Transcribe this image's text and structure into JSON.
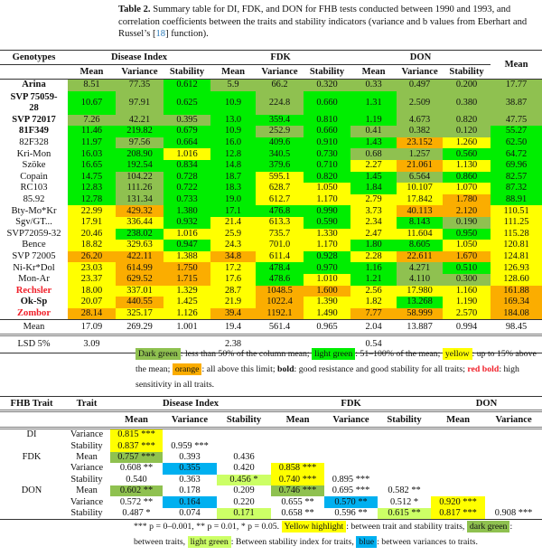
{
  "caption": {
    "label": "Table 2.",
    "text_before_ref": "Summary table for DI, FDK, and DON for FHB tests conducted between 1990 and 1993, and correlation coefficients between the traits and stability indicators (variance and b values from Eberhart and Russel’s [",
    "ref": "18",
    "text_after_ref": "] function)."
  },
  "colors": {
    "D": "#8fc150",
    "G": "#00ee00",
    "Y": "#ffff00",
    "O": "#fbad00",
    "B": "#00b0f0",
    "L": "#ccff66"
  },
  "table1": {
    "genotypes_header": "Genotypes",
    "groups": [
      "Disease Index",
      "FDK",
      "DON"
    ],
    "mean_header": "Mean",
    "subheaders": [
      "Mean",
      "Variance",
      "Stability",
      "Mean",
      "Variance",
      "Stability",
      "Mean",
      "Variance",
      "Stability"
    ],
    "rows": [
      {
        "name": "Arina",
        "style": "bold",
        "values": [
          "8.51",
          "77.35",
          "0.612",
          "5.9",
          "66.2",
          "0.320",
          "0.33",
          "0.497",
          "0.200",
          "17.77"
        ],
        "colors": "DDGDDDDDDD"
      },
      {
        "name": "SVP 75059-28",
        "style": "bold",
        "values": [
          "10.67",
          "97.91",
          "0.625",
          "10.9",
          "224.8",
          "0.660",
          "1.31",
          "2.509",
          "0.380",
          "38.87"
        ],
        "colors": "GDGGDGGDDD"
      },
      {
        "name": "SVP 72017",
        "style": "bold",
        "values": [
          "7.26",
          "42.21",
          "0.395",
          "13.0",
          "359.4",
          "0.810",
          "1.19",
          "4.673",
          "0.820",
          "47.75"
        ],
        "colors": "DDDGGGGDDD"
      },
      {
        "name": "81F349",
        "style": "bold",
        "values": [
          "11.46",
          "219.82",
          "0.679",
          "10.9",
          "252.9",
          "0.660",
          "0.41",
          "0.382",
          "0.120",
          "55.27"
        ],
        "colors": "GGGGDGDDDG"
      },
      {
        "name": "82F328",
        "style": "",
        "values": [
          "11.97",
          "97.56",
          "0.664",
          "16.0",
          "409.6",
          "0.910",
          "1.43",
          "23.152",
          "1.260",
          "62.50"
        ],
        "colors": "GDGGGGGOYG"
      },
      {
        "name": "Kri-Mon",
        "style": "",
        "values": [
          "16.03",
          "208.90",
          "1.016",
          "12.8",
          "340.5",
          "0.730",
          "0.68",
          "1.257",
          "0.560",
          "64.72"
        ],
        "colors": "GGYGGGDDGG"
      },
      {
        "name": "Szöke",
        "style": "",
        "values": [
          "16.65",
          "192.54",
          "0.834",
          "14.8",
          "379.6",
          "0.710",
          "2.27",
          "21.061",
          "1.130",
          "69.96"
        ],
        "colors": "GGGGGGYOYG"
      },
      {
        "name": "Copain",
        "style": "",
        "values": [
          "14.75",
          "104.22",
          "0.728",
          "18.7",
          "595.1",
          "0.820",
          "1.45",
          "6.564",
          "0.860",
          "82.57"
        ],
        "colors": "GDGGYGGDGG"
      },
      {
        "name": "RC103",
        "style": "",
        "values": [
          "12.83",
          "111.26",
          "0.722",
          "18.3",
          "628.7",
          "1.050",
          "1.84",
          "10.107",
          "1.070",
          "87.32"
        ],
        "colors": "GDGGYYGYYG"
      },
      {
        "name": "85.92",
        "style": "",
        "values": [
          "12.78",
          "131.34",
          "0.733",
          "19.0",
          "612.7",
          "1.170",
          "2.79",
          "17.842",
          "1.780",
          "88.91"
        ],
        "colors": "GDGGYYYYOG"
      },
      {
        "name": "Bty-Mo*Kr",
        "style": "",
        "values": [
          "22.99",
          "429.32",
          "1.380",
          "17.1",
          "476.8",
          "0.990",
          "3.73",
          "40.113",
          "2.120",
          "110.51"
        ],
        "colors": "YOGGGGYOOY"
      },
      {
        "name": "Sgv/GT...",
        "style": "",
        "values": [
          "17.91",
          "336.44",
          "0.932",
          "21.4",
          "613.3",
          "0.590",
          "2.34",
          "8.143",
          "0.190",
          "111.25"
        ],
        "colors": "YYGYYGYGDY"
      },
      {
        "name": "SVP72059-32",
        "style": "",
        "values": [
          "20.46",
          "238.02",
          "1.016",
          "25.9",
          "735.7",
          "1.330",
          "2.47",
          "11.604",
          "0.950",
          "115.28"
        ],
        "colors": "YGYYYYYYGY"
      },
      {
        "name": "Bence",
        "style": "",
        "values": [
          "18.82",
          "329.63",
          "0.947",
          "24.3",
          "701.0",
          "1.170",
          "1.80",
          "8.605",
          "1.050",
          "120.81"
        ],
        "colors": "YYGYYYGGYY"
      },
      {
        "name": "SVP 72005",
        "style": "",
        "values": [
          "26.20",
          "422.11",
          "1.388",
          "34.8",
          "611.4",
          "0.928",
          "2.28",
          "22.611",
          "1.670",
          "124.81"
        ],
        "colors": "OOYOYGYOOY"
      },
      {
        "name": "Ni-Kr*Dol",
        "style": "",
        "values": [
          "23.03",
          "614.99",
          "1.750",
          "17.2",
          "478.4",
          "0.970",
          "1.16",
          "4.271",
          "0.510",
          "126.93"
        ],
        "colors": "YOOYGGGDGY"
      },
      {
        "name": "Mon-Ar",
        "style": "",
        "values": [
          "23.37",
          "629.52",
          "1.715",
          "17.6",
          "478.6",
          "1.010",
          "1.21",
          "4.110",
          "0.300",
          "128.60"
        ],
        "colors": "YOOYGYGDDY"
      },
      {
        "name": "Rechsler",
        "style": "red",
        "values": [
          "18.00",
          "337.01",
          "1.329",
          "28.7",
          "1048.5",
          "1.600",
          "2.56",
          "17.980",
          "1.160",
          "161.88"
        ],
        "colors": "YYYYOOYYYO"
      },
      {
        "name": "Ok-Sp",
        "style": "bold",
        "values": [
          "20.07",
          "440.55",
          "1.425",
          "21.9",
          "1022.4",
          "1.390",
          "1.82",
          "13.268",
          "1.190",
          "169.34"
        ],
        "colors": "YOYYOYYGYO"
      },
      {
        "name": "Zombor",
        "style": "red",
        "values": [
          "28.14",
          "325.17",
          "1.126",
          "39.4",
          "1192.1",
          "1.490",
          "7.77",
          "58.999",
          "2.570",
          "184.08"
        ],
        "colors": "OYYOOYOOYO"
      }
    ],
    "mean_row": {
      "label": "Mean",
      "values": [
        "17.09",
        "269.29",
        "1.001",
        "19.4",
        "561.4",
        "0.965",
        "2.04",
        "13.887",
        "0.994",
        "98.45"
      ]
    },
    "lsd_row": {
      "label": "LSD 5%",
      "values": [
        "3.09",
        "",
        "",
        "2.38",
        "",
        "",
        "0.54",
        "",
        "",
        ""
      ]
    }
  },
  "legend1": [
    {
      "text": "Dark green",
      "color": "D"
    },
    {
      "text": ": less than 50% of the column mean; "
    },
    {
      "text": "light green",
      "color": "G"
    },
    {
      "text": ": 51–100% of the mean; "
    },
    {
      "text": "yellow",
      "color": "Y"
    },
    {
      "text": ": up to 15% above the mean; "
    },
    {
      "text": "orange",
      "color": "O"
    },
    {
      "text": ": all above this limit; "
    },
    {
      "text": "bold",
      "style": "bold"
    },
    {
      "text": ": good resistance and good stability for all traits; "
    },
    {
      "text": "red bold",
      "style": "red"
    },
    {
      "text": ": high sensitivity in all traits."
    }
  ],
  "table2": {
    "headers": {
      "fhb_trait": "FHB Trait",
      "trait": "Trait",
      "groups": [
        "Disease Index",
        "FDK",
        "DON"
      ]
    },
    "subheaders": [
      "Mean",
      "Variance",
      "Stability",
      "Mean",
      "Variance",
      "Stability",
      "Mean",
      "Variance"
    ],
    "rows": [
      {
        "group": "DI",
        "trait": "Variance",
        "cells": [
          [
            "0.815 ***",
            "Y"
          ]
        ]
      },
      {
        "group": "",
        "trait": "Stability",
        "cells": [
          [
            "0.837 ***",
            "Y"
          ],
          [
            "0.959 ***",
            ""
          ]
        ]
      },
      {
        "group": "FDK",
        "trait": "Mean",
        "cells": [
          [
            "0.757 ***",
            "D"
          ],
          [
            "0.393",
            ""
          ],
          [
            "0.436",
            ""
          ]
        ]
      },
      {
        "group": "",
        "trait": "Variance",
        "cells": [
          [
            "0.608 **",
            ""
          ],
          [
            "0.355",
            "B"
          ],
          [
            "0.420",
            ""
          ],
          [
            "0.858 ***",
            "Y"
          ]
        ]
      },
      {
        "group": "",
        "trait": "Stability",
        "cells": [
          [
            "0.540",
            ""
          ],
          [
            "0.363",
            ""
          ],
          [
            "0.456 *",
            "L"
          ],
          [
            "0.740 ***",
            "Y"
          ],
          [
            "0.895 ***",
            ""
          ]
        ]
      },
      {
        "group": "DON",
        "trait": "Mean",
        "cells": [
          [
            "0.602 **",
            "D"
          ],
          [
            "0.178",
            ""
          ],
          [
            "0.209",
            ""
          ],
          [
            "0.746 ***",
            "D"
          ],
          [
            "0.695 ***",
            ""
          ],
          [
            "0.582 **",
            ""
          ]
        ]
      },
      {
        "group": "",
        "trait": "Variance",
        "cells": [
          [
            "0.572 **",
            ""
          ],
          [
            "0.164",
            "B"
          ],
          [
            "0.220",
            ""
          ],
          [
            "0.655 **",
            ""
          ],
          [
            "0.570 **",
            "B"
          ],
          [
            "0.512 *",
            ""
          ],
          [
            "0.920 ***",
            "Y"
          ]
        ]
      },
      {
        "group": "",
        "trait": "Stability",
        "cells": [
          [
            "0.487 *",
            ""
          ],
          [
            "0.074",
            ""
          ],
          [
            "0.171",
            "L"
          ],
          [
            "0.658 **",
            ""
          ],
          [
            "0.596 **",
            ""
          ],
          [
            "0.615 **",
            "L"
          ],
          [
            "0.817 ***",
            "Y"
          ],
          [
            "0.908 ***",
            ""
          ]
        ]
      }
    ]
  },
  "legend2": [
    {
      "text": "*** p = 0–0.001, ** p = 0.01, * p = 0.05. "
    },
    {
      "text": "Yellow highlight",
      "color": "Y"
    },
    {
      "text": ": between trait and stability traits, "
    },
    {
      "text": "dark green",
      "color": "D"
    },
    {
      "text": ": between traits, "
    },
    {
      "text": "light green",
      "color": "L"
    },
    {
      "text": ": Between stability index for traits, "
    },
    {
      "text": "blue",
      "color": "B"
    },
    {
      "text": ": between variances to traits."
    }
  ]
}
